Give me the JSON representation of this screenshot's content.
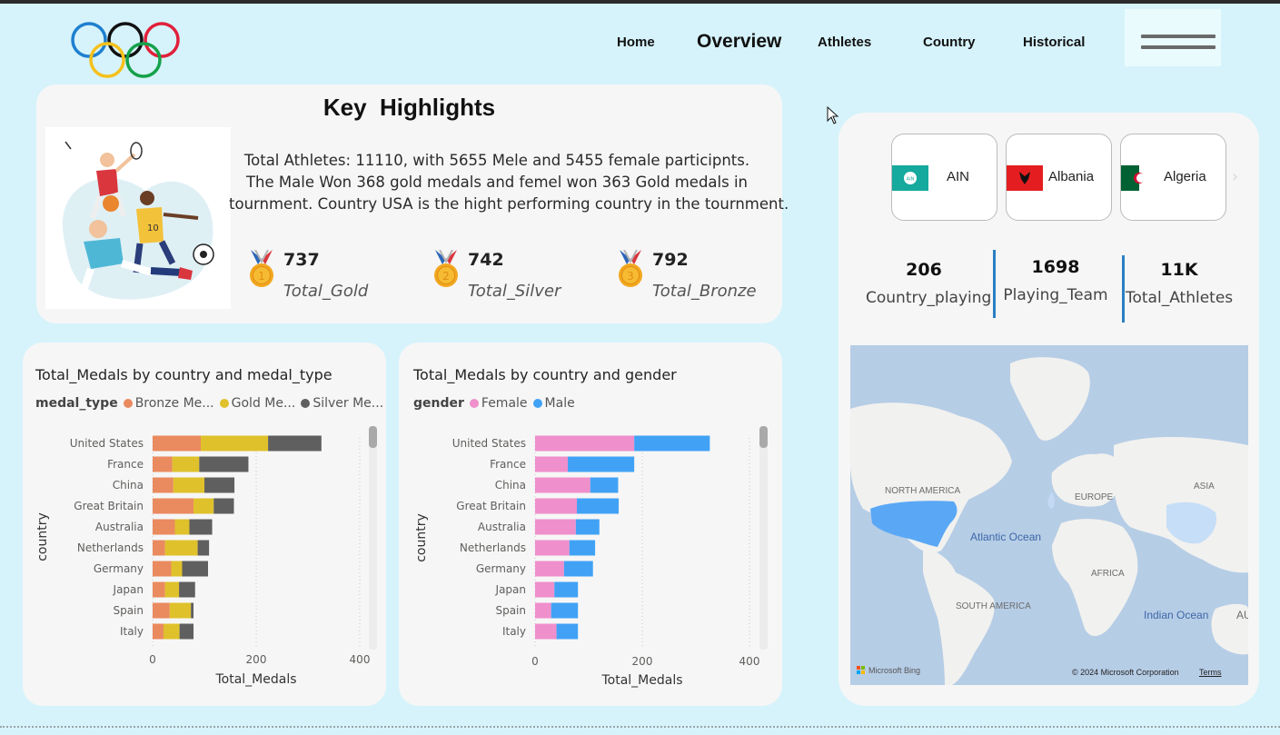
{
  "nav": {
    "items": [
      {
        "label": "Home"
      },
      {
        "label": "Overview",
        "active": true
      },
      {
        "label": "Athletes"
      },
      {
        "label": "Country"
      },
      {
        "label": "Historical"
      }
    ]
  },
  "icons": {
    "logo": "olympic-rings-icon",
    "menu": "hamburger-menu-icon",
    "medal_gold": "gold-medal-icon",
    "medal_silver": "silver-medal-icon",
    "medal_bronze": "bronze-medal-icon",
    "carousel_next": "chevron-right-icon"
  },
  "colors": {
    "background": "#d6f3fb",
    "card": "#f6f6f6",
    "bronze": "#ea8a5f",
    "gold": "#dfc12b",
    "silver": "#5f5f5f",
    "female": "#ef8fcb",
    "male": "#41a2f5",
    "separator": "#2a7fc2"
  },
  "highlights": {
    "title": "Key  Highlights",
    "lines": [
      "Total Athletes: 11110, with 5655 Mele and 5455 female participnts.",
      "The Male Won 368 gold medals and femel won 363 Gold medals in",
      "tournment. Country USA is the hight performing country in the tournment."
    ],
    "medals": [
      {
        "value": "737",
        "label": "Total_Gold",
        "badge": "1"
      },
      {
        "value": "742",
        "label": "Total_Silver",
        "badge": "2"
      },
      {
        "value": "792",
        "label": "Total_Bronze",
        "badge": "3"
      }
    ]
  },
  "chart_data": [
    {
      "type": "bar",
      "orientation": "horizontal",
      "stacked": true,
      "title": "Total_Medals by country and medal_type",
      "legend_title": "medal_type",
      "legend_labels": [
        "Bronze Me...",
        "Gold Me...",
        "Silver Me..."
      ],
      "legend_position": "top-left",
      "xlabel": "Total_Medals",
      "ylabel": "country",
      "xlim": [
        0,
        400
      ],
      "xticks": [
        "0",
        "200",
        "400"
      ],
      "grid": "vertical-dotted",
      "categories": [
        "United States",
        "France",
        "China",
        "Great Britain",
        "Australia",
        "Netherlands",
        "Germany",
        "Japan",
        "Spain",
        "Italy"
      ],
      "series": [
        {
          "name": "Bronze Medal",
          "color": "#ea8a5f",
          "values": [
            93,
            38,
            40,
            79,
            43,
            24,
            36,
            24,
            33,
            21
          ]
        },
        {
          "name": "Gold Medal",
          "color": "#dfc12b",
          "values": [
            130,
            52,
            60,
            39,
            28,
            63,
            21,
            27,
            41,
            31
          ]
        },
        {
          "name": "Silver Medal",
          "color": "#5f5f5f",
          "values": [
            103,
            95,
            58,
            39,
            44,
            22,
            50,
            31,
            5,
            27
          ]
        }
      ]
    },
    {
      "type": "bar",
      "orientation": "horizontal",
      "stacked": true,
      "title": "Total_Medals by country and gender",
      "legend_title": "gender",
      "legend_labels": [
        "Female",
        "Male"
      ],
      "legend_position": "top-left",
      "xlabel": "Total_Medals",
      "ylabel": "country",
      "xlim": [
        0,
        400
      ],
      "xticks": [
        "0",
        "200",
        "400"
      ],
      "grid": "vertical-dotted",
      "categories": [
        "United States",
        "France",
        "China",
        "Great Britain",
        "Australia",
        "Netherlands",
        "Germany",
        "Japan",
        "Spain",
        "Italy"
      ],
      "series": [
        {
          "name": "Female",
          "color": "#ef8fcb",
          "values": [
            185,
            61,
            103,
            78,
            76,
            64,
            54,
            36,
            30,
            40
          ]
        },
        {
          "name": "Male",
          "color": "#41a2f5",
          "values": [
            141,
            124,
            52,
            78,
            44,
            48,
            54,
            44,
            50,
            40
          ]
        }
      ]
    }
  ],
  "countries": [
    {
      "name": "AIN"
    },
    {
      "name": "Albania"
    },
    {
      "name": "Algeria"
    }
  ],
  "stats": [
    {
      "value": "206",
      "label": "Country_playing"
    },
    {
      "value": "1698",
      "label": "Playing_Team"
    },
    {
      "value": "11K",
      "label": "Total_Athletes"
    }
  ],
  "map": {
    "labels": {
      "north_america": "NORTH AMERICA",
      "europe": "EUROPE",
      "asia": "ASIA",
      "atlantic": "Atlantic Ocean",
      "africa": "AFRICA",
      "south_america": "SOUTH AMERICA",
      "indian": "Indian Ocean",
      "au": "AU"
    },
    "attribution_brand": "Microsoft Bing",
    "copyright": "© 2024 Microsoft Corporation",
    "terms": "Terms"
  }
}
